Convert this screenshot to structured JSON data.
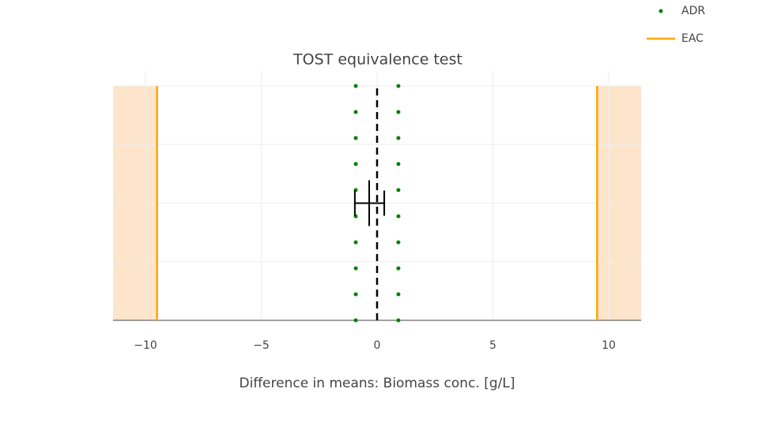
{
  "chart_data": {
    "type": "scatter",
    "title": "TOST equivalence test",
    "x_label": "Difference in means: Biomass conc. [g/L]",
    "xlim": [
      -11.4,
      11.4
    ],
    "xticks": [
      {
        "value": -10,
        "label": "−10"
      },
      {
        "value": -5,
        "label": "−5"
      },
      0,
      5,
      10
    ],
    "ylim": [
      0,
      1.064
    ],
    "yticks": [
      0,
      0.25,
      0.5,
      0.75,
      1
    ],
    "ytick_labels": false,
    "grid": true,
    "legend": "top-right",
    "series": [
      {
        "name": "ADR",
        "color": "#008000",
        "x": [
          -0.92,
          -0.92,
          -0.92,
          -0.92,
          -0.92,
          -0.92,
          -0.92,
          -0.92,
          -0.92,
          -0.92,
          0.92,
          0.92,
          0.92,
          0.92,
          0.92,
          0.92,
          0.92,
          0.92,
          0.92,
          0.92
        ],
        "values": [
          0,
          0.111,
          0.222,
          0.333,
          0.444,
          0.556,
          0.667,
          0.778,
          0.889,
          1,
          0,
          0.111,
          0.222,
          0.333,
          0.444,
          0.556,
          0.667,
          0.778,
          0.889,
          1
        ]
      },
      {
        "name": "EAC",
        "color": "#ffa500",
        "shade": "#fde5cc",
        "x": [
          -9.5,
          9.5
        ],
        "y_range": [
          0,
          1
        ]
      }
    ],
    "reference_line": {
      "x": 0,
      "y_range": [
        0,
        1
      ],
      "color": "#000000"
    },
    "estimate": {
      "value": -0.34,
      "ci": [
        -0.96,
        0.31
      ],
      "y": 0.5,
      "color": "#000000"
    }
  }
}
